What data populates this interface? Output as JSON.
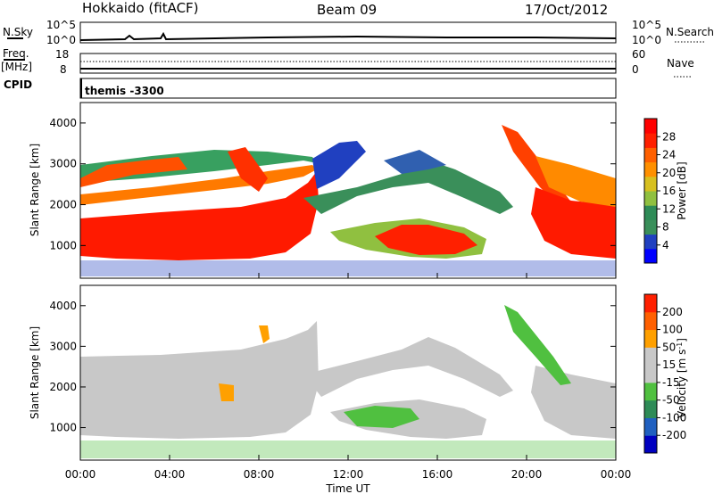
{
  "header": {
    "station": "Hokkaido (fitACF)",
    "beam": "Beam 09",
    "date": "17/Oct/2012"
  },
  "strips": {
    "nsky_label": "N.Sky",
    "nsky_ticks": [
      "10^5",
      "10^0"
    ],
    "nsearch_label": "N.Search",
    "nsearch_ticks": [
      "10^5",
      "10^0"
    ],
    "freq_label": "Freq.",
    "freq_unit": "[MHz]",
    "freq_ticks": [
      "18",
      "8"
    ],
    "nave_label": "Nave",
    "nave_ticks": [
      "60",
      "0"
    ],
    "cpid_label": "CPID",
    "cpid_text": "themis -3300"
  },
  "chart_data": [
    {
      "type": "heatmap",
      "name": "power",
      "ylabel": "Slant Range [km]",
      "yticks": [
        "4000",
        "3000",
        "2000",
        "1000"
      ],
      "ylim": [
        200,
        4500
      ],
      "xlim": [
        "00:00",
        "24:00"
      ],
      "colorbar": {
        "label": "Power [dB]",
        "ticks": [
          "28",
          "24",
          "20",
          "16",
          "12",
          "8",
          "4"
        ],
        "colors": [
          "#0000ff",
          "#2040c0",
          "#3a8f5a",
          "#2e8b57",
          "#90c040",
          "#d7c020",
          "#ff9000",
          "#ff6000",
          "#ff2000",
          "#ff0000"
        ]
      }
    },
    {
      "type": "heatmap",
      "name": "velocity",
      "ylabel": "Slant Range [km]",
      "yticks": [
        "4000",
        "3000",
        "2000",
        "1000"
      ],
      "ylim": [
        200,
        4500
      ],
      "xlim": [
        "00:00",
        "24:00"
      ],
      "xticks": [
        "00:00",
        "04:00",
        "08:00",
        "12:00",
        "16:00",
        "20:00",
        "00:00"
      ],
      "xlabel": "Time UT",
      "colorbar": {
        "label": "Velocity [m s",
        "label_sup": "-1",
        "label_end": "]",
        "ticks": [
          "200",
          "100",
          "50",
          "15",
          "-15",
          "-50",
          "-100",
          "-200"
        ],
        "colors": [
          "#0000c0",
          "#2060c0",
          "#2e8b57",
          "#50c040",
          "#c8c8c8",
          "#c8c8c8",
          "#ffa000",
          "#ff6000",
          "#ff2000"
        ]
      }
    }
  ]
}
